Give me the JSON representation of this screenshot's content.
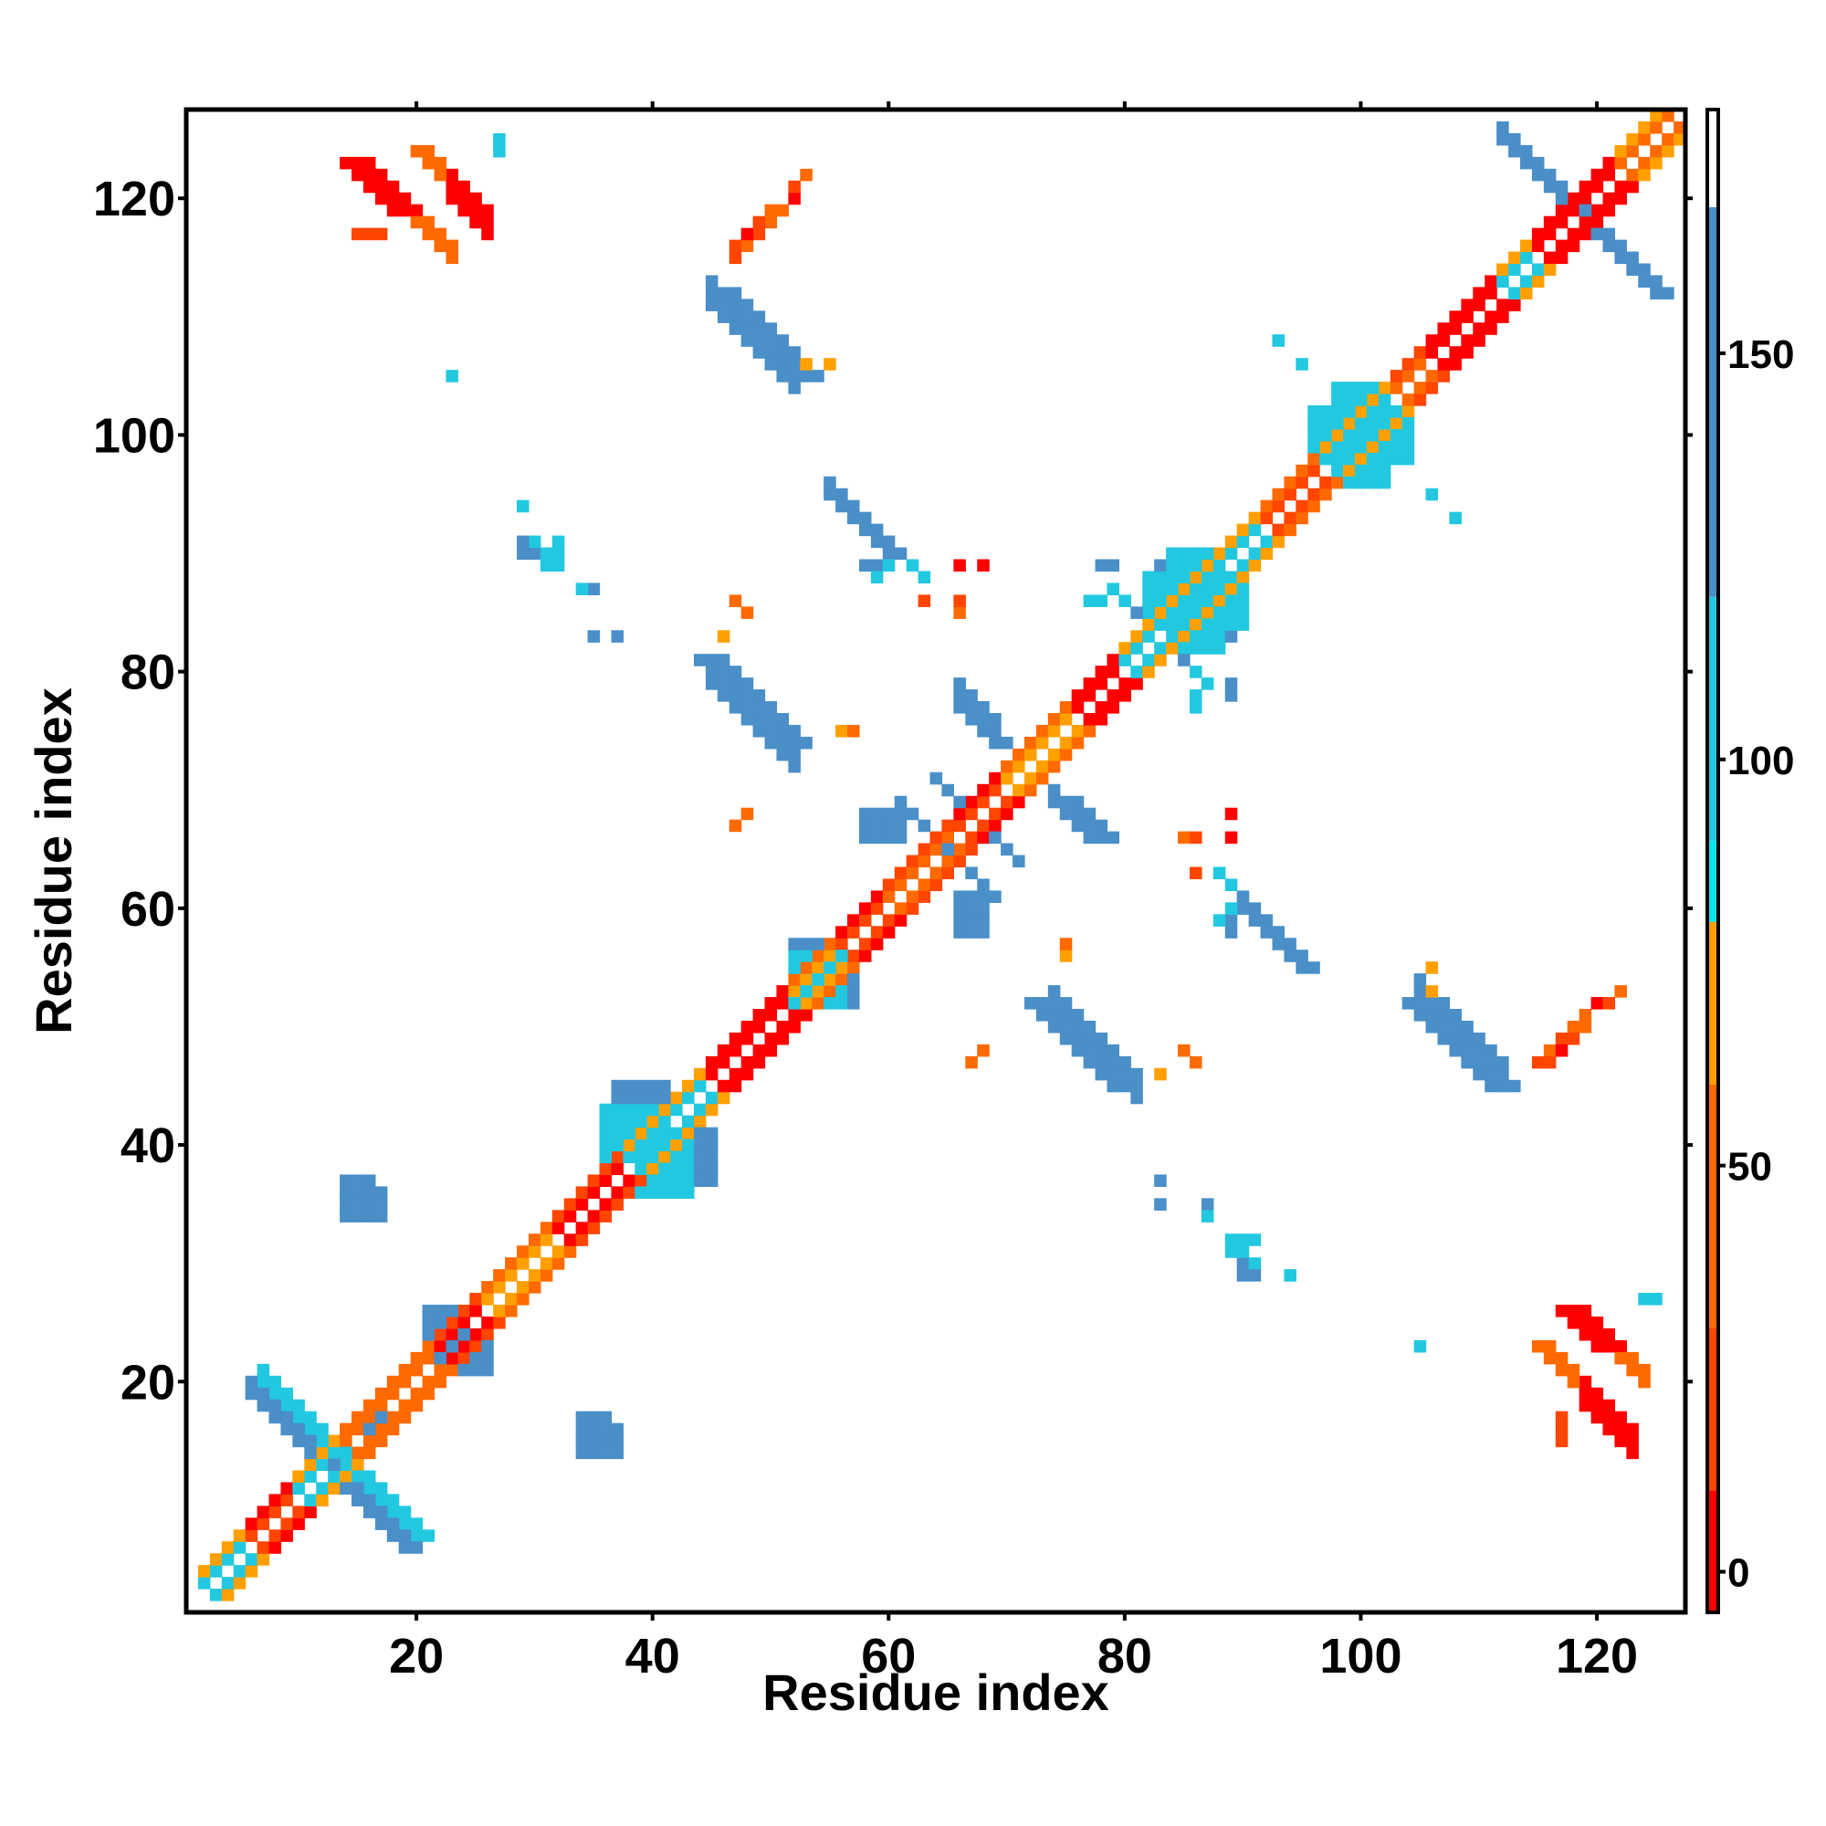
{
  "chart_data": {
    "type": "heatmap",
    "title": "",
    "xlabel": "Residue index",
    "ylabel": "Residue index",
    "xlim": [
      1,
      127
    ],
    "ylim": [
      1,
      127
    ],
    "x_ticks": [
      20,
      40,
      60,
      80,
      100,
      120
    ],
    "y_ticks": [
      20,
      40,
      60,
      80,
      100,
      120
    ],
    "x_tick_labels": [
      "20",
      "40",
      "60",
      "80",
      "100",
      "120"
    ],
    "y_tick_labels": [
      "20",
      "40",
      "60",
      "80",
      "100",
      "120"
    ],
    "grid": false,
    "legend": "none",
    "colorbar": {
      "placement": "right",
      "range": [
        -5,
        180
      ],
      "ticks": [
        0,
        50,
        100,
        150
      ],
      "tick_labels": [
        "0",
        "50",
        "100",
        "150"
      ],
      "bands": [
        {
          "from": -5,
          "to": 10,
          "color": "#ff0000"
        },
        {
          "from": 10,
          "to": 30,
          "color": "#ff4500"
        },
        {
          "from": 30,
          "to": 60,
          "color": "#ff6a00"
        },
        {
          "from": 60,
          "to": 80,
          "color": "#ffa000"
        },
        {
          "from": 80,
          "to": 90,
          "color": "#00e5ee"
        },
        {
          "from": 90,
          "to": 120,
          "color": "#22c8e0"
        },
        {
          "from": 120,
          "to": 168,
          "color": "#4a8fc8"
        },
        {
          "from": 168,
          "to": 180,
          "color": "#ffffff"
        }
      ]
    },
    "diagonal": {
      "start": 2,
      "end": 126,
      "segments": [
        {
          "from": 2,
          "to": 6,
          "near": 105,
          "far": 60
        },
        {
          "from": 6,
          "to": 10,
          "near": 20,
          "far": 5
        },
        {
          "from": 10,
          "to": 14,
          "near": 100,
          "far": 60
        },
        {
          "from": 14,
          "to": 22,
          "near": 40,
          "far": 55
        },
        {
          "from": 22,
          "to": 26,
          "near": 5,
          "far": 20
        },
        {
          "from": 26,
          "to": 32,
          "near": 70,
          "far": 45
        },
        {
          "from": 32,
          "to": 38,
          "near": 5,
          "far": 15
        },
        {
          "from": 38,
          "to": 45,
          "near": 105,
          "far": 60
        },
        {
          "from": 45,
          "to": 52,
          "near": 5,
          "far": 2
        },
        {
          "from": 52,
          "to": 56,
          "near": 60,
          "far": 40
        },
        {
          "from": 56,
          "to": 60,
          "near": 10,
          "far": 5
        },
        {
          "from": 60,
          "to": 66,
          "near": 45,
          "far": 20
        },
        {
          "from": 66,
          "to": 70,
          "near": 20,
          "far": 5
        },
        {
          "from": 70,
          "to": 76,
          "near": 75,
          "far": 45
        },
        {
          "from": 76,
          "to": 80,
          "near": 5,
          "far": 2
        },
        {
          "from": 80,
          "to": 92,
          "near": 100,
          "far": 60
        },
        {
          "from": 92,
          "to": 97,
          "near": 15,
          "far": 40
        },
        {
          "from": 97,
          "to": 103,
          "near": 95,
          "far": 70
        },
        {
          "from": 103,
          "to": 106,
          "near": 45,
          "far": 20
        },
        {
          "from": 106,
          "to": 112,
          "near": 5,
          "far": 2
        },
        {
          "from": 112,
          "to": 115,
          "near": 100,
          "far": 60
        },
        {
          "from": 115,
          "to": 122,
          "near": 5,
          "far": 2
        },
        {
          "from": 122,
          "to": 126,
          "near": 45,
          "far": 60
        }
      ]
    },
    "antiparallel_strips": [
      {
        "a0": 7,
        "a1": 19,
        "b0": 13,
        "b1": 14,
        "width": 2,
        "value": 115
      },
      {
        "a0": 6,
        "a1": 18,
        "b0": 12,
        "b1": 13,
        "width": 2,
        "value": 140
      },
      {
        "a0": 112,
        "a1": 124,
        "b0": 103,
        "b1": 104,
        "width": 2,
        "value": 145
      },
      {
        "a0": 113,
        "a1": 123,
        "b0": 102,
        "b1": 104,
        "width": 2,
        "value": 150
      },
      {
        "a0": 64,
        "a1": 70,
        "b0": 62,
        "b1": 63,
        "width": 1,
        "value": 140
      },
      {
        "a0": 61,
        "a1": 68,
        "b0": 64,
        "b1": 65,
        "width": 1,
        "value": 120
      }
    ],
    "parallel_strips": [
      {
        "x0": 45,
        "y0": 113,
        "len": 8,
        "width": 3,
        "value": 145
      },
      {
        "x0": 45,
        "y0": 81,
        "len": 8,
        "width": 3,
        "value": 140
      },
      {
        "x0": 74,
        "y0": 53,
        "len": 8,
        "width": 3,
        "value": 145
      },
      {
        "x0": 55,
        "y0": 96,
        "len": 6,
        "width": 2,
        "value": 140
      },
      {
        "x0": 90,
        "y0": 61,
        "len": 6,
        "width": 2,
        "value": 140
      },
      {
        "x0": 105,
        "y0": 54,
        "len": 8,
        "width": 2,
        "value": 145
      },
      {
        "x0": 66,
        "y0": 79,
        "len": 4,
        "width": 2,
        "value": 150
      },
      {
        "x0": 74,
        "y0": 70,
        "len": 4,
        "width": 2,
        "value": 150
      },
      {
        "x0": 23,
        "y0": 122,
        "len": 4,
        "width": 3,
        "value": 8
      },
      {
        "x0": 20,
        "y0": 119,
        "len": 4,
        "width": 2,
        "value": 40
      },
      {
        "x0": 119,
        "y0": 20,
        "len": 5,
        "width": 3,
        "value": 8
      },
      {
        "x0": 122,
        "y0": 23,
        "len": 3,
        "width": 2,
        "value": 40
      }
    ],
    "blocks": [
      {
        "x0": 22,
        "x1": 26,
        "y0": 21,
        "y1": 24,
        "value": 140
      },
      {
        "x0": 36,
        "x1": 41,
        "y0": 39,
        "y1": 43,
        "value": 110
      },
      {
        "x0": 37,
        "x1": 41,
        "y0": 41,
        "y1": 45,
        "value": 140
      },
      {
        "x0": 52,
        "x1": 56,
        "y0": 52,
        "y1": 56,
        "value": 110
      },
      {
        "x0": 52,
        "x1": 55,
        "y0": 55,
        "y1": 57,
        "value": 140
      },
      {
        "x0": 84,
        "x1": 88,
        "y0": 82,
        "y1": 86,
        "value": 100
      },
      {
        "x0": 83,
        "x1": 87,
        "y0": 85,
        "y1": 89,
        "value": 140
      },
      {
        "x0": 84,
        "x1": 90,
        "y0": 84,
        "y1": 88,
        "value": 95
      },
      {
        "x0": 98,
        "x1": 102,
        "y0": 96,
        "y1": 100,
        "value": 105
      },
      {
        "x0": 100,
        "x1": 104,
        "y0": 98,
        "y1": 102,
        "value": 95
      },
      {
        "x0": 14,
        "x1": 16,
        "y0": 34,
        "y1": 37,
        "value": 140
      },
      {
        "x0": 34,
        "x1": 36,
        "y0": 14,
        "y1": 17,
        "value": 140
      },
      {
        "x0": 29,
        "x1": 31,
        "y0": 90,
        "y1": 90,
        "value": 140
      },
      {
        "x0": 31,
        "x1": 32,
        "y0": 89,
        "y1": 90,
        "value": 100
      },
      {
        "x0": 16,
        "x1": 18,
        "y0": 16,
        "y1": 17,
        "value": 140
      },
      {
        "x0": 66,
        "x1": 68,
        "y0": 58,
        "y1": 61,
        "value": 140
      }
    ],
    "points": [
      {
        "x": 23,
        "y": 105,
        "value": 110
      },
      {
        "x": 29,
        "y": 94,
        "value": 110
      },
      {
        "x": 35,
        "y": 87,
        "value": 140
      },
      {
        "x": 34,
        "y": 87,
        "value": 140
      },
      {
        "x": 35,
        "y": 83,
        "value": 140
      },
      {
        "x": 37,
        "y": 83,
        "value": 140
      },
      {
        "x": 47,
        "y": 86,
        "value": 40
      },
      {
        "x": 56,
        "y": 75,
        "value": 70
      },
      {
        "x": 47,
        "y": 67,
        "value": 40
      },
      {
        "x": 48,
        "y": 68,
        "value": 40
      },
      {
        "x": 58,
        "y": 89,
        "value": 140
      },
      {
        "x": 59,
        "y": 89,
        "value": 140
      },
      {
        "x": 60,
        "y": 89,
        "value": 110
      },
      {
        "x": 62,
        "y": 89,
        "value": 110
      },
      {
        "x": 63,
        "y": 88,
        "value": 110
      },
      {
        "x": 59,
        "y": 88,
        "value": 100
      },
      {
        "x": 66,
        "y": 89,
        "value": 5
      },
      {
        "x": 68,
        "y": 89,
        "value": 5
      },
      {
        "x": 66,
        "y": 85,
        "value": 40
      },
      {
        "x": 66,
        "y": 86,
        "value": 40
      },
      {
        "x": 63,
        "y": 86,
        "value": 20
      },
      {
        "x": 49,
        "y": 117,
        "value": 20
      },
      {
        "x": 50,
        "y": 118,
        "value": 40
      },
      {
        "x": 51,
        "y": 119,
        "value": 40
      },
      {
        "x": 52,
        "y": 120,
        "value": 40
      },
      {
        "x": 47,
        "y": 115,
        "value": 20
      },
      {
        "x": 48,
        "y": 116,
        "value": 40
      },
      {
        "x": 53,
        "y": 106,
        "value": 70
      },
      {
        "x": 75,
        "y": 57,
        "value": 40
      },
      {
        "x": 67,
        "y": 47,
        "value": 40
      },
      {
        "x": 68,
        "y": 48,
        "value": 40
      },
      {
        "x": 85,
        "y": 48,
        "value": 40
      },
      {
        "x": 83,
        "y": 46,
        "value": 70
      },
      {
        "x": 85,
        "y": 66,
        "value": 40
      },
      {
        "x": 86,
        "y": 66,
        "value": 20
      },
      {
        "x": 89,
        "y": 66,
        "value": 5
      },
      {
        "x": 89,
        "y": 68,
        "value": 20
      },
      {
        "x": 88,
        "y": 63,
        "value": 100
      },
      {
        "x": 89,
        "y": 60,
        "value": 140
      },
      {
        "x": 89,
        "y": 62,
        "value": 110
      },
      {
        "x": 89,
        "y": 79,
        "value": 140
      },
      {
        "x": 87,
        "y": 79,
        "value": 110
      },
      {
        "x": 78,
        "y": 89,
        "value": 140
      },
      {
        "x": 78,
        "y": 86,
        "value": 100
      },
      {
        "x": 77,
        "y": 86,
        "value": 100
      },
      {
        "x": 80,
        "y": 86,
        "value": 100
      },
      {
        "x": 81,
        "y": 85,
        "value": 140
      },
      {
        "x": 82,
        "y": 85,
        "value": 140
      },
      {
        "x": 83,
        "y": 37,
        "value": 140
      },
      {
        "x": 83,
        "y": 35,
        "value": 140
      },
      {
        "x": 87,
        "y": 35,
        "value": 140
      },
      {
        "x": 87,
        "y": 34,
        "value": 110
      },
      {
        "x": 91,
        "y": 32,
        "value": 110
      },
      {
        "x": 90,
        "y": 32,
        "value": 110
      },
      {
        "x": 91,
        "y": 30,
        "value": 110
      },
      {
        "x": 91,
        "y": 29,
        "value": 140
      },
      {
        "x": 94,
        "y": 29,
        "value": 110
      },
      {
        "x": 93,
        "y": 108,
        "value": 110
      },
      {
        "x": 95,
        "y": 106,
        "value": 110
      },
      {
        "x": 106,
        "y": 95,
        "value": 110
      },
      {
        "x": 108,
        "y": 93,
        "value": 110
      },
      {
        "x": 105,
        "y": 23,
        "value": 110
      },
      {
        "x": 117,
        "y": 48,
        "value": 5
      },
      {
        "x": 118,
        "y": 49,
        "value": 20
      },
      {
        "x": 119,
        "y": 50,
        "value": 40
      },
      {
        "x": 120,
        "y": 52,
        "value": 5
      },
      {
        "x": 121,
        "y": 52,
        "value": 20
      },
      {
        "x": 122,
        "y": 53,
        "value": 40
      },
      {
        "x": 116,
        "y": 47,
        "value": 20
      },
      {
        "x": 106,
        "y": 55,
        "value": 70
      },
      {
        "x": 15,
        "y": 117,
        "value": 20
      },
      {
        "x": 16,
        "y": 117,
        "value": 20
      },
      {
        "x": 17,
        "y": 117,
        "value": 20
      },
      {
        "x": 117,
        "y": 15,
        "value": 20
      },
      {
        "x": 117,
        "y": 16,
        "value": 20
      },
      {
        "x": 117,
        "y": 17,
        "value": 20
      },
      {
        "x": 125,
        "y": 27,
        "value": 110
      },
      {
        "x": 124,
        "y": 27,
        "value": 110
      },
      {
        "x": 27,
        "y": 125,
        "value": 110
      },
      {
        "x": 27,
        "y": 124,
        "value": 110
      }
    ]
  }
}
